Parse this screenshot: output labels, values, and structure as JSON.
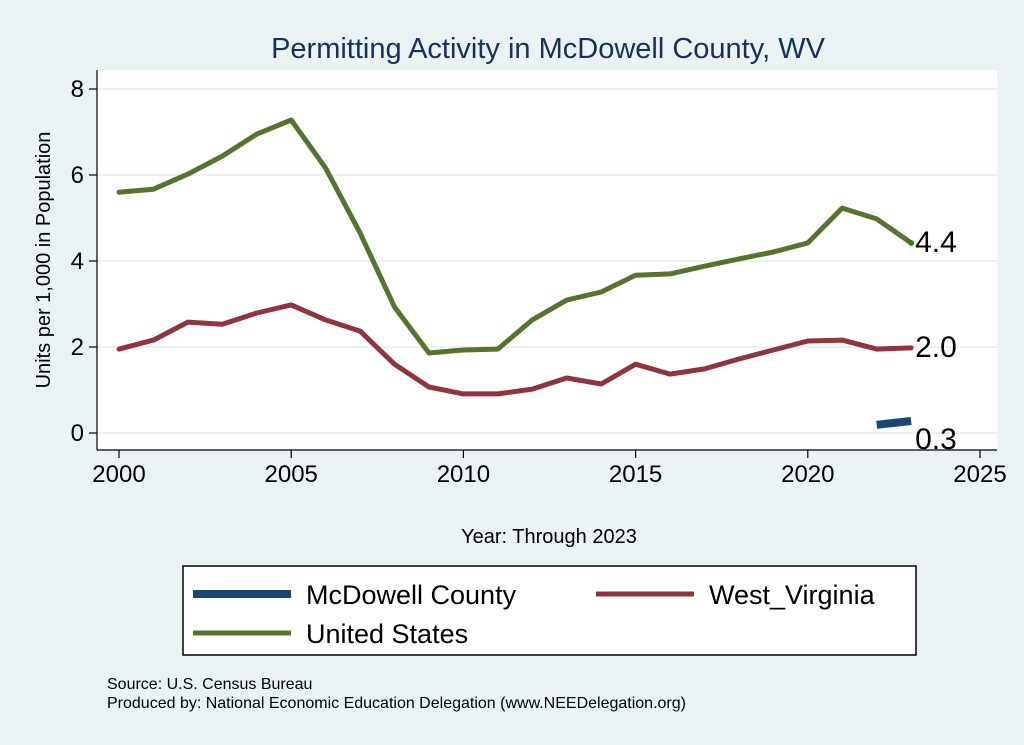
{
  "chart_data": {
    "type": "line",
    "title": "Permitting Activity in McDowell County, WV",
    "xlabel": "Year: Through 2023",
    "ylabel": "Units per 1,000 in Population",
    "xlim": [
      2000,
      2025
    ],
    "ylim": [
      0,
      8
    ],
    "xticks": [
      "2000",
      "2005",
      "2010",
      "2015",
      "2020",
      "2025"
    ],
    "yticks": [
      "0",
      "2",
      "4",
      "6",
      "8"
    ],
    "grid": true,
    "legend_position": "bottom",
    "series": [
      {
        "name": "McDowell County",
        "color": "#1a476f",
        "x": [
          2022,
          2023
        ],
        "values": [
          0.19,
          0.28
        ],
        "end_label": "0.3"
      },
      {
        "name": "West_Virginia",
        "color": "#90353b",
        "x": [
          2000,
          2001,
          2002,
          2003,
          2004,
          2005,
          2006,
          2007,
          2008,
          2009,
          2010,
          2011,
          2012,
          2013,
          2014,
          2015,
          2016,
          2017,
          2018,
          2019,
          2020,
          2021,
          2022,
          2023
        ],
        "values": [
          1.95,
          2.16,
          2.58,
          2.53,
          2.79,
          2.98,
          2.63,
          2.37,
          1.6,
          1.07,
          0.91,
          0.91,
          1.02,
          1.28,
          1.14,
          1.6,
          1.37,
          1.49,
          1.72,
          1.93,
          2.14,
          2.16,
          1.95,
          1.98
        ],
        "end_label": "2.0"
      },
      {
        "name": "United States",
        "color": "#55752f",
        "x": [
          2000,
          2001,
          2002,
          2003,
          2004,
          2005,
          2006,
          2007,
          2008,
          2009,
          2010,
          2011,
          2012,
          2013,
          2014,
          2015,
          2016,
          2017,
          2018,
          2019,
          2020,
          2021,
          2022,
          2023
        ],
        "values": [
          5.6,
          5.67,
          6.02,
          6.44,
          6.95,
          7.28,
          6.16,
          4.65,
          2.93,
          1.86,
          1.93,
          1.95,
          2.63,
          3.09,
          3.28,
          3.67,
          3.7,
          3.88,
          4.05,
          4.21,
          4.42,
          5.23,
          4.98,
          4.42
        ],
        "end_label": "4.4"
      }
    ],
    "legend_order": [
      0,
      1,
      2
    ],
    "notes": [
      "Source: U.S. Census Bureau",
      "Produced by: National Economic Education Delegation (www.NEEDelegation.org)"
    ]
  }
}
